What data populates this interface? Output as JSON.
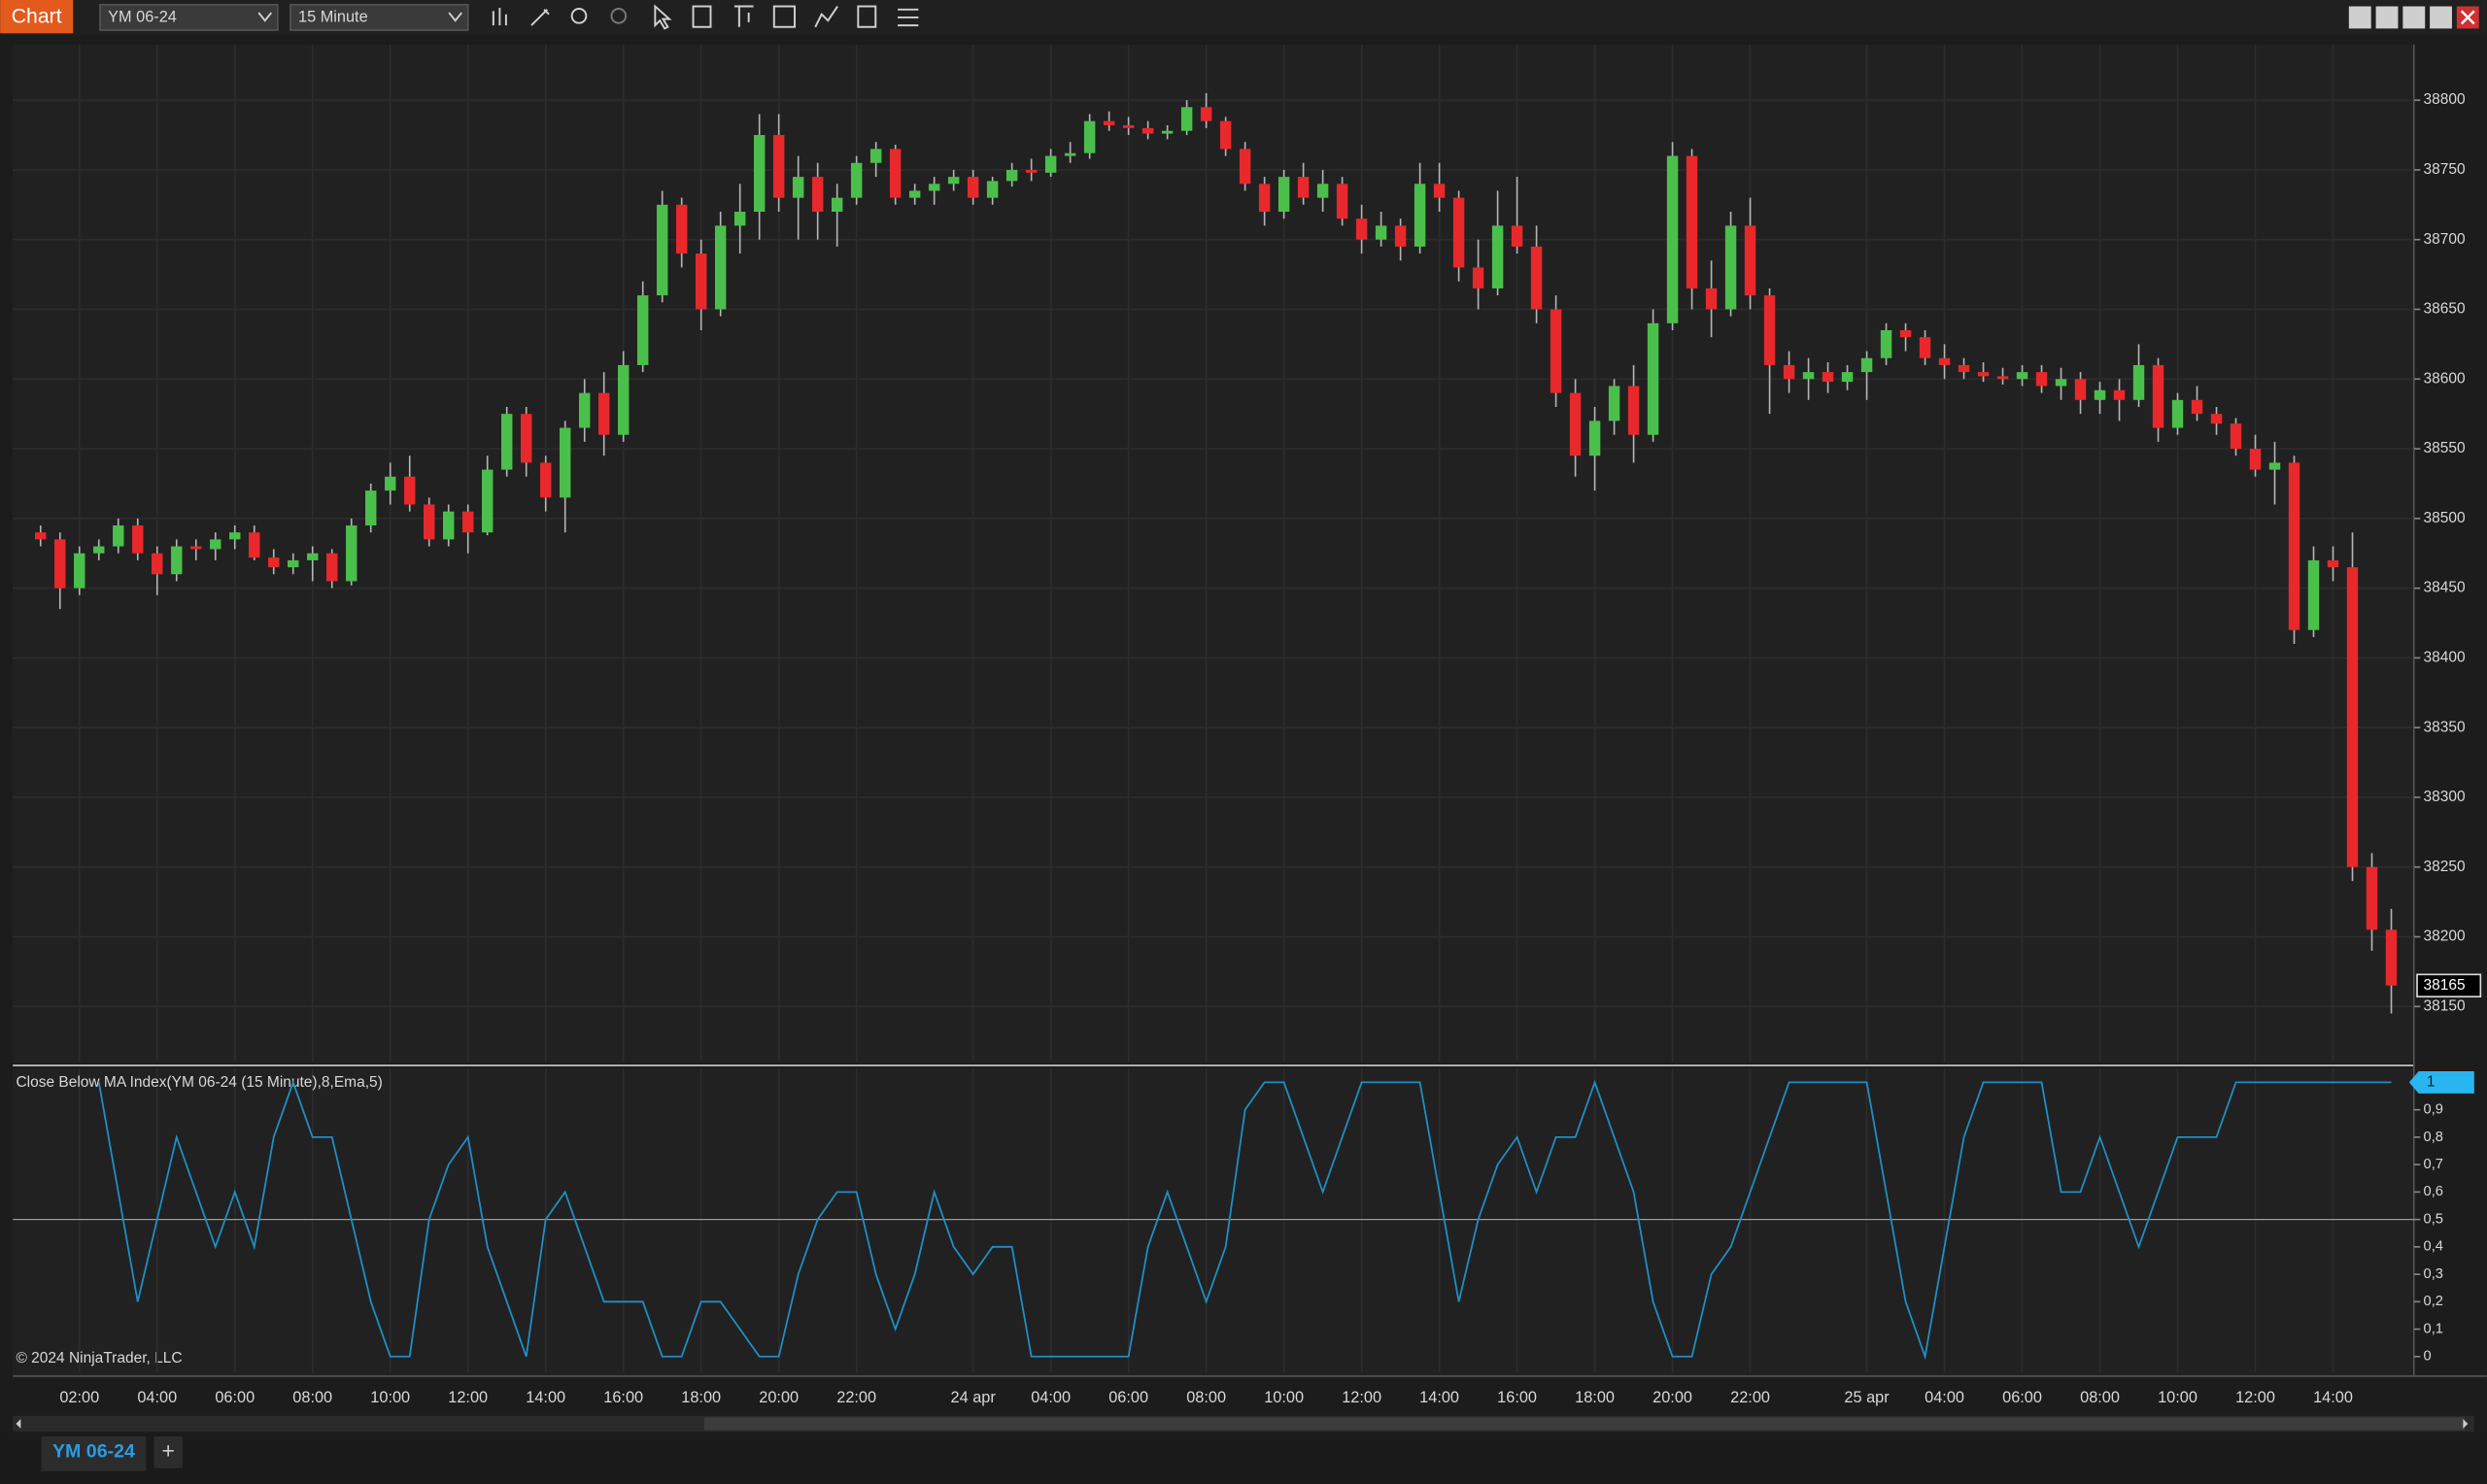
{
  "toolbar": {
    "title": "Chart",
    "instrument": "YM 06-24",
    "interval": "15 Minute"
  },
  "copyright": "© 2024 NinjaTrader, LLC",
  "tabs": {
    "active": "YM 06-24",
    "add": "+"
  },
  "chart_data": [
    {
      "type": "candlestick",
      "grid": true,
      "up_color": "#4bbf4b",
      "down_color": "#e8282b",
      "wick_color": "#b4b4b4",
      "categories": [
        null,
        null,
        "02:00",
        null,
        null,
        null,
        "04:00",
        null,
        null,
        null,
        "06:00",
        null,
        null,
        null,
        "08:00",
        null,
        null,
        null,
        "10:00",
        null,
        null,
        null,
        "12:00",
        null,
        null,
        null,
        "14:00",
        null,
        null,
        null,
        "16:00",
        null,
        null,
        null,
        "18:00",
        null,
        null,
        null,
        "20:00",
        null,
        null,
        null,
        "22:00",
        null,
        null,
        null,
        null,
        null,
        "24 apr",
        null,
        null,
        null,
        "04:00",
        null,
        null,
        null,
        "06:00",
        null,
        null,
        null,
        "08:00",
        null,
        null,
        null,
        "10:00",
        null,
        null,
        null,
        "12:00",
        null,
        null,
        null,
        "14:00",
        null,
        null,
        null,
        "16:00",
        null,
        null,
        null,
        "18:00",
        null,
        null,
        null,
        "20:00",
        null,
        null,
        null,
        "22:00",
        null,
        null,
        null,
        null,
        null,
        "25 apr",
        null,
        null,
        null,
        "04:00",
        null,
        null,
        null,
        "06:00",
        null,
        null,
        null,
        "08:00",
        null,
        null,
        null,
        "10:00",
        null,
        null,
        null,
        "12:00",
        null,
        null,
        null,
        "14:00",
        null,
        null,
        null
      ],
      "open": [
        38490,
        38485,
        38450,
        38475,
        38480,
        38495,
        38475,
        38460,
        38480,
        38478,
        38485,
        38490,
        38472,
        38465,
        38470,
        38475,
        38455,
        38495,
        38520,
        38530,
        38510,
        38485,
        38505,
        38490,
        38535,
        38575,
        38540,
        38515,
        38565,
        38590,
        38560,
        38610,
        38660,
        38725,
        38690,
        38650,
        38710,
        38720,
        38775,
        38730,
        38745,
        38720,
        38730,
        38755,
        38765,
        38730,
        38735,
        38740,
        38745,
        38730,
        38742,
        38750,
        38748,
        38760,
        38762,
        38785,
        38782,
        38780,
        38776,
        38778,
        38795,
        38785,
        38765,
        38740,
        38720,
        38745,
        38730,
        38740,
        38715,
        38700,
        38710,
        38695,
        38740,
        38730,
        38680,
        38665,
        38710,
        38695,
        38650,
        38590,
        38545,
        38570,
        38595,
        38560,
        38640,
        38760,
        38665,
        38650,
        38710,
        38660,
        38610,
        38600,
        38605,
        38598,
        38605,
        38615,
        38635,
        38630,
        38615,
        38610,
        38605,
        38602,
        38600,
        38605,
        38595,
        38600,
        38585,
        38592,
        38585,
        38610,
        38565,
        38585,
        38575,
        38568,
        38550,
        38535,
        38540,
        38420,
        38470,
        38465,
        38250,
        38205
      ],
      "high": [
        38495,
        38490,
        38480,
        38485,
        38500,
        38500,
        38480,
        38485,
        38485,
        38490,
        38495,
        38495,
        38478,
        38475,
        38480,
        38478,
        38500,
        38525,
        38540,
        38545,
        38515,
        38510,
        38510,
        38545,
        38580,
        38580,
        38545,
        38570,
        38600,
        38605,
        38620,
        38670,
        38735,
        38730,
        38700,
        38720,
        38740,
        38790,
        38790,
        38760,
        38755,
        38740,
        38760,
        38770,
        38768,
        38740,
        38745,
        38750,
        38750,
        38745,
        38755,
        38758,
        38765,
        38770,
        38790,
        38792,
        38788,
        38785,
        38782,
        38800,
        38805,
        38788,
        38770,
        38745,
        38750,
        38755,
        38750,
        38745,
        38725,
        38720,
        38715,
        38755,
        38755,
        38735,
        38700,
        38735,
        38745,
        38710,
        38660,
        38600,
        38580,
        38600,
        38610,
        38650,
        38770,
        38765,
        38685,
        38720,
        38730,
        38665,
        38620,
        38615,
        38612,
        38610,
        38620,
        38640,
        38640,
        38635,
        38625,
        38615,
        38612,
        38608,
        38610,
        38610,
        38608,
        38605,
        38598,
        38600,
        38625,
        38615,
        38590,
        38595,
        38580,
        38572,
        38560,
        38555,
        38545,
        38480,
        38480,
        38490,
        38260,
        38220
      ],
      "low": [
        38480,
        38435,
        38445,
        38470,
        38475,
        38470,
        38445,
        38455,
        38470,
        38470,
        38478,
        38470,
        38460,
        38460,
        38455,
        38450,
        38452,
        38490,
        38510,
        38505,
        38480,
        38480,
        38475,
        38488,
        38530,
        38530,
        38505,
        38490,
        38555,
        38545,
        38555,
        38605,
        38655,
        38680,
        38635,
        38645,
        38690,
        38700,
        38720,
        38700,
        38700,
        38695,
        38725,
        38745,
        38725,
        38725,
        38725,
        38735,
        38725,
        38725,
        38738,
        38742,
        38745,
        38755,
        38758,
        38778,
        38775,
        38772,
        38772,
        38775,
        38780,
        38760,
        38735,
        38710,
        38715,
        38725,
        38720,
        38710,
        38690,
        38695,
        38685,
        38690,
        38720,
        38670,
        38650,
        38660,
        38690,
        38640,
        38580,
        38530,
        38520,
        38560,
        38540,
        38555,
        38635,
        38650,
        38630,
        38645,
        38650,
        38575,
        38590,
        38585,
        38590,
        38592,
        38585,
        38610,
        38620,
        38610,
        38600,
        38600,
        38598,
        38596,
        38595,
        38590,
        38585,
        38575,
        38575,
        38570,
        38580,
        38555,
        38560,
        38570,
        38560,
        38545,
        38530,
        38510,
        38410,
        38415,
        38455,
        38240,
        38190,
        38145
      ],
      "close": [
        38485,
        38450,
        38475,
        38480,
        38495,
        38475,
        38460,
        38480,
        38478,
        38485,
        38490,
        38472,
        38465,
        38470,
        38475,
        38455,
        38495,
        38520,
        38530,
        38510,
        38485,
        38505,
        38490,
        38535,
        38575,
        38540,
        38515,
        38565,
        38590,
        38560,
        38610,
        38660,
        38725,
        38690,
        38650,
        38710,
        38720,
        38775,
        38730,
        38745,
        38720,
        38730,
        38755,
        38765,
        38730,
        38735,
        38740,
        38745,
        38730,
        38742,
        38750,
        38748,
        38760,
        38762,
        38785,
        38782,
        38780,
        38776,
        38778,
        38795,
        38785,
        38765,
        38740,
        38720,
        38745,
        38730,
        38740,
        38715,
        38700,
        38710,
        38695,
        38740,
        38730,
        38680,
        38665,
        38710,
        38695,
        38650,
        38590,
        38545,
        38570,
        38595,
        38560,
        38640,
        38760,
        38665,
        38650,
        38710,
        38660,
        38610,
        38600,
        38605,
        38598,
        38605,
        38615,
        38635,
        38630,
        38615,
        38610,
        38605,
        38602,
        38600,
        38605,
        38595,
        38600,
        38585,
        38592,
        38585,
        38610,
        38565,
        38585,
        38575,
        38568,
        38550,
        38535,
        38540,
        38420,
        38470,
        38465,
        38250,
        38205,
        38165
      ],
      "ylim": [
        38110,
        38840
      ],
      "yticks": [
        38150,
        38200,
        38250,
        38300,
        38350,
        38400,
        38450,
        38500,
        38550,
        38600,
        38650,
        38700,
        38750,
        38800
      ]
    },
    {
      "type": "line",
      "title": "Close Below MA Index(YM 06-24 (15 Minute),8,Ema,5)",
      "color": "#1f8fc4",
      "values": [
        null,
        null,
        null,
        1,
        0.6,
        0.2,
        0.5,
        0.8,
        0.6,
        0.4,
        0.6,
        0.4,
        0.8,
        1,
        0.8,
        0.8,
        0.5,
        0.2,
        0,
        0,
        0.5,
        0.7,
        0.8,
        0.4,
        0.2,
        0,
        0.5,
        0.6,
        0.4,
        0.2,
        0.2,
        0.2,
        0,
        0,
        0.2,
        0.2,
        0.1,
        0,
        0,
        0.3,
        0.5,
        0.6,
        0.6,
        0.3,
        0.1,
        0.3,
        0.6,
        0.4,
        0.3,
        0.4,
        0.4,
        0,
        0,
        0,
        0,
        0,
        0,
        0.4,
        0.6,
        0.4,
        0.2,
        0.4,
        0.9,
        1,
        1,
        0.8,
        0.6,
        0.8,
        1,
        1,
        1,
        1,
        0.6,
        0.2,
        0.5,
        0.7,
        0.8,
        0.6,
        0.8,
        0.8,
        1,
        0.8,
        0.6,
        0.2,
        0,
        0,
        0.3,
        0.4,
        0.6,
        0.8,
        1,
        1,
        1,
        1,
        1,
        0.6,
        0.2,
        0,
        0.4,
        0.8,
        1,
        1,
        1,
        1,
        0.6,
        0.6,
        0.8,
        0.6,
        0.4,
        0.6,
        0.8,
        0.8,
        0.8,
        1,
        1,
        1,
        1,
        1,
        1,
        1,
        1,
        1
      ],
      "reference_line": 0.5,
      "ylim": [
        -0.06,
        1.05
      ],
      "yticks": [
        0,
        {
          "value": 0.1,
          "label": "0,1"
        },
        {
          "value": 0.2,
          "label": "0,2"
        },
        {
          "value": 0.3,
          "label": "0,3"
        },
        {
          "value": 0.4,
          "label": "0,4"
        },
        {
          "value": 0.5,
          "label": "0,5"
        },
        {
          "value": 0.6,
          "label": "0,6"
        },
        {
          "value": 0.7,
          "label": "0,7"
        },
        {
          "value": 0.8,
          "label": "0,8"
        },
        {
          "value": 0.9,
          "label": "0,9"
        },
        1
      ]
    }
  ]
}
